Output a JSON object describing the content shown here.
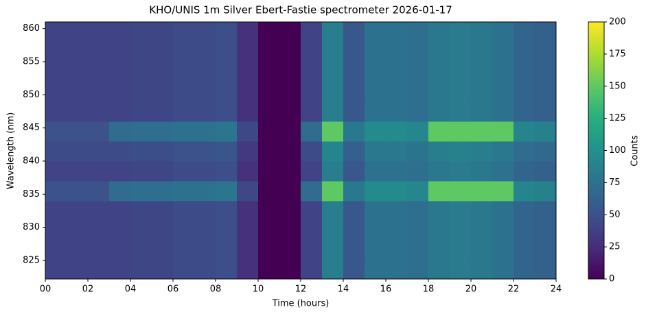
{
  "chart_data": {
    "type": "heatmap",
    "title": "KHO/UNIS 1m Silver Ebert-Fastie spectrometer 2026-01-17",
    "x_label": "Time (hours)",
    "y_label": "Wavelength (nm)",
    "colorbar_label": "Counts",
    "colormap": "viridis",
    "x_bins": [
      0,
      1,
      2,
      3,
      4,
      5,
      6,
      7,
      8,
      9,
      10,
      11,
      12,
      13,
      14,
      15,
      16,
      17,
      18,
      19,
      20,
      21,
      22,
      23,
      24
    ],
    "y_bins": [
      822.2,
      825,
      828,
      831,
      834,
      837,
      840,
      843,
      846,
      849,
      852,
      855,
      858,
      861
    ],
    "z": [
      [
        40,
        40,
        40,
        40,
        42,
        42,
        45,
        45,
        48,
        28,
        0,
        0,
        40,
        85,
        55,
        75,
        75,
        72,
        80,
        82,
        80,
        75,
        65,
        62
      ],
      [
        40,
        40,
        40,
        40,
        42,
        42,
        45,
        45,
        48,
        28,
        0,
        0,
        40,
        85,
        55,
        75,
        75,
        72,
        80,
        82,
        80,
        75,
        65,
        62
      ],
      [
        40,
        40,
        40,
        40,
        42,
        42,
        45,
        45,
        48,
        28,
        0,
        0,
        40,
        85,
        55,
        75,
        75,
        72,
        80,
        82,
        80,
        75,
        65,
        62
      ],
      [
        40,
        40,
        40,
        40,
        42,
        42,
        45,
        45,
        48,
        28,
        0,
        0,
        40,
        85,
        55,
        75,
        75,
        72,
        80,
        82,
        80,
        75,
        65,
        62
      ],
      [
        50,
        50,
        50,
        70,
        72,
        72,
        75,
        75,
        78,
        43,
        0,
        0,
        70,
        150,
        80,
        95,
        95,
        92,
        150,
        150,
        150,
        150,
        90,
        87
      ],
      [
        40,
        40,
        40,
        40,
        42,
        42,
        45,
        45,
        48,
        28,
        0,
        0,
        40,
        85,
        55,
        75,
        75,
        72,
        80,
        82,
        80,
        75,
        65,
        62
      ],
      [
        45,
        45,
        45,
        45,
        47,
        47,
        50,
        50,
        53,
        33,
        0,
        0,
        45,
        90,
        60,
        80,
        80,
        77,
        85,
        87,
        85,
        80,
        70,
        67
      ],
      [
        50,
        50,
        50,
        70,
        72,
        72,
        75,
        75,
        78,
        43,
        0,
        0,
        70,
        150,
        80,
        95,
        95,
        92,
        150,
        150,
        150,
        150,
        90,
        87
      ],
      [
        40,
        40,
        40,
        40,
        42,
        42,
        45,
        45,
        48,
        28,
        0,
        0,
        40,
        85,
        55,
        75,
        75,
        72,
        80,
        82,
        80,
        75,
        65,
        62
      ],
      [
        40,
        40,
        40,
        40,
        42,
        42,
        45,
        45,
        48,
        28,
        0,
        0,
        40,
        85,
        55,
        75,
        75,
        72,
        80,
        82,
        80,
        75,
        65,
        62
      ],
      [
        40,
        40,
        40,
        40,
        42,
        42,
        45,
        45,
        48,
        28,
        0,
        0,
        40,
        85,
        55,
        75,
        75,
        72,
        80,
        82,
        80,
        75,
        65,
        62
      ],
      [
        40,
        40,
        40,
        40,
        42,
        42,
        45,
        45,
        48,
        28,
        0,
        0,
        40,
        85,
        55,
        75,
        75,
        72,
        80,
        82,
        80,
        75,
        65,
        62
      ],
      [
        40,
        40,
        40,
        40,
        42,
        42,
        45,
        45,
        48,
        28,
        0,
        0,
        40,
        85,
        55,
        75,
        75,
        72,
        80,
        82,
        80,
        75,
        65,
        62
      ]
    ],
    "xlim": [
      0,
      24
    ],
    "xticks": [
      {
        "value": 0,
        "label": "00"
      },
      {
        "value": 2,
        "label": "02"
      },
      {
        "value": 4,
        "label": "04"
      },
      {
        "value": 6,
        "label": "06"
      },
      {
        "value": 8,
        "label": "08"
      },
      {
        "value": 10,
        "label": "10"
      },
      {
        "value": 12,
        "label": "12"
      },
      {
        "value": 14,
        "label": "14"
      },
      {
        "value": 16,
        "label": "16"
      },
      {
        "value": 18,
        "label": "18"
      },
      {
        "value": 20,
        "label": "20"
      },
      {
        "value": 22,
        "label": "22"
      },
      {
        "value": 24,
        "label": "24"
      }
    ],
    "ylim": [
      822.2,
      861
    ],
    "yticks": [
      825,
      830,
      835,
      840,
      845,
      850,
      855,
      860
    ],
    "clim": [
      0,
      200
    ],
    "cticks": [
      0,
      25,
      50,
      75,
      100,
      125,
      150,
      175,
      200
    ]
  }
}
